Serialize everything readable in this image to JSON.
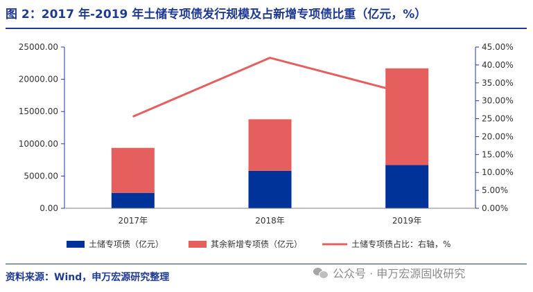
{
  "header": {
    "title": "图 2：2017 年-2019 年土储专项债发行规模及占新增专项债比重（亿元，%）"
  },
  "footer": {
    "source": "资料来源：Wind，申万宏源研究整理",
    "watermark": "公众号 · 申万宏源固收研究"
  },
  "colors": {
    "land_bonds": "#003399",
    "other_bonds": "#e65f5f",
    "share_line": "#e65f5f",
    "axis": "#1f3a93",
    "title": "#1f3a93"
  },
  "chart_data": {
    "type": "bar",
    "stacked": true,
    "categories": [
      "2017年",
      "2018年",
      "2019年"
    ],
    "series": [
      {
        "name": "土储专项债（亿元）",
        "type": "bar",
        "axis": "left",
        "values": [
          2390,
          5800,
          6700
        ]
      },
      {
        "name": "其余新增专项债（亿元）",
        "type": "bar",
        "axis": "left",
        "values": [
          6980,
          8000,
          15000
        ]
      },
      {
        "name": "土储专项债占比：右轴，%",
        "type": "line",
        "axis": "right",
        "values": [
          25.6,
          42.0,
          32.0
        ]
      }
    ],
    "y_left": {
      "lim": [
        0,
        25000
      ],
      "ticks": [
        0,
        5000,
        10000,
        15000,
        20000,
        25000
      ],
      "tick_labels": [
        "0.00",
        "5000.00",
        "10000.00",
        "15000.00",
        "20000.00",
        "25000.00"
      ]
    },
    "y_right": {
      "lim": [
        0,
        45
      ],
      "ticks": [
        0,
        5,
        10,
        15,
        20,
        25,
        30,
        35,
        40,
        45
      ],
      "tick_labels": [
        "0.00%",
        "5.00%",
        "10.00%",
        "15.00%",
        "20.00%",
        "25.00%",
        "30.00%",
        "35.00%",
        "40.00%",
        "45.00%"
      ]
    },
    "legend": [
      "土储专项债（亿元）",
      "其余新增专项债（亿元）",
      "土储专项债占比：右轴，%"
    ],
    "legend_position": "bottom"
  }
}
